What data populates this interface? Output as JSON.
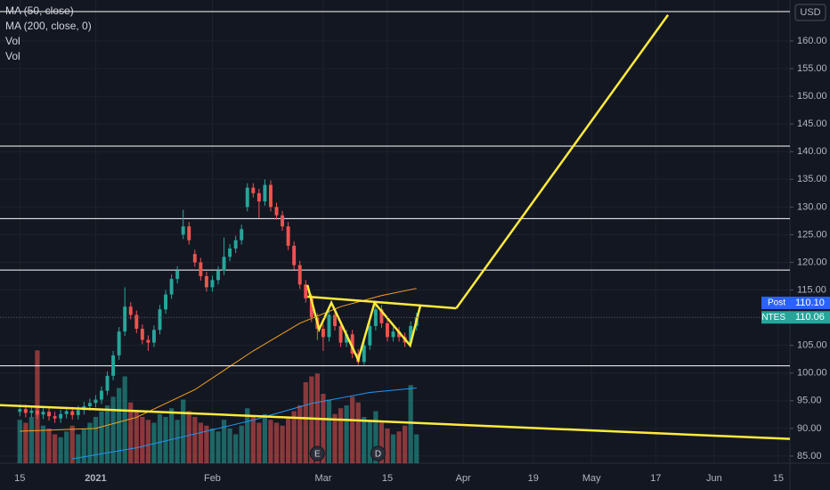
{
  "chart_data": {
    "type": "candlestick",
    "currency": "USD",
    "ylim": [
      83.7,
      167.4
    ],
    "yticks": [
      {
        "value": 85,
        "label": "85.00"
      },
      {
        "value": 90,
        "label": "90.00"
      },
      {
        "value": 95,
        "label": "95.00"
      },
      {
        "value": 100,
        "label": "100.00"
      },
      {
        "value": 105,
        "label": "105.00"
      },
      {
        "value": 110,
        "label": "110.00"
      },
      {
        "value": 115,
        "label": "115.00"
      },
      {
        "value": 120,
        "label": "120.00"
      },
      {
        "value": 125,
        "label": "125.00"
      },
      {
        "value": 130,
        "label": "130.00"
      },
      {
        "value": 135,
        "label": "135.00"
      },
      {
        "value": 140,
        "label": "140.00"
      },
      {
        "value": 145,
        "label": "145.00"
      },
      {
        "value": 150,
        "label": "150.00"
      },
      {
        "value": 155,
        "label": "155.00"
      },
      {
        "value": 160,
        "label": "160.00"
      }
    ],
    "xlim": [
      -3.4,
      132
    ],
    "xticks": [
      {
        "value": 0,
        "label": "15"
      },
      {
        "value": 13,
        "label": "2021"
      },
      {
        "value": 33,
        "label": "Feb"
      },
      {
        "value": 52,
        "label": "Mar"
      },
      {
        "value": 63,
        "label": "15"
      },
      {
        "value": 76,
        "label": "Apr"
      },
      {
        "value": 88,
        "label": "19"
      },
      {
        "value": 98,
        "label": "May"
      },
      {
        "value": 109,
        "label": "17"
      },
      {
        "value": 119,
        "label": "Jun"
      },
      {
        "value": 130,
        "label": "15"
      }
    ],
    "up_color": "#26a69a",
    "down_color": "#ef5350",
    "open": [
      93.0,
      93.5,
      92.8,
      93.2,
      92.5,
      93.0,
      92.2,
      91.8,
      92.6,
      93.1,
      92.4,
      93.3,
      94.0,
      94.6,
      95.2,
      96.8,
      99.5,
      103.2,
      107.5,
      112.0,
      110.5,
      108.0,
      106.0,
      105.5,
      107.8,
      111.5,
      114.2,
      117.0,
      125.0,
      126.5,
      121.5,
      120.0,
      117.5,
      115.5,
      116.8,
      118.5,
      121.0,
      122.5,
      124.0,
      130.0,
      133.5,
      132.5,
      131.0,
      134.0,
      130.0,
      128.5,
      126.5,
      123.0,
      119.5,
      116.0,
      113.5,
      110.0,
      108.0,
      106.5,
      110.5,
      108.5,
      105.5,
      107.0,
      103.5,
      102.0,
      105.0,
      108.5,
      111.5,
      109.0,
      106.5,
      107.5,
      106.5,
      105.5,
      108.5
    ],
    "high": [
      94.3,
      94.3,
      94.0,
      94.0,
      93.8,
      93.8,
      93.0,
      93.4,
      93.9,
      93.9,
      94.1,
      94.8,
      95.4,
      96.0,
      97.6,
      100.3,
      104.0,
      108.3,
      115.5,
      112.8,
      111.3,
      108.8,
      106.8,
      108.6,
      112.3,
      115.0,
      117.8,
      119.3,
      129.5,
      127.3,
      122.3,
      120.8,
      118.3,
      117.6,
      119.3,
      124.5,
      123.3,
      124.8,
      126.8,
      134.3,
      134.3,
      133.3,
      135.0,
      134.8,
      130.8,
      129.3,
      127.3,
      123.8,
      120.3,
      116.8,
      114.3,
      110.8,
      108.8,
      111.3,
      111.3,
      109.3,
      107.8,
      107.8,
      104.3,
      105.8,
      109.3,
      112.3,
      112.3,
      109.8,
      108.3,
      108.3,
      107.3,
      109.3,
      110.9
    ],
    "low": [
      92.2,
      92.0,
      92.0,
      91.7,
      91.7,
      91.4,
      91.0,
      91.0,
      91.8,
      91.6,
      91.6,
      92.5,
      93.2,
      93.8,
      94.4,
      96.0,
      98.7,
      102.4,
      106.7,
      109.7,
      107.2,
      105.2,
      104.0,
      104.7,
      107.0,
      110.7,
      113.4,
      116.2,
      124.2,
      123.2,
      119.2,
      116.7,
      114.7,
      114.7,
      116.0,
      117.7,
      120.2,
      121.7,
      123.2,
      129.2,
      131.7,
      128.0,
      130.2,
      129.2,
      127.7,
      125.7,
      122.2,
      118.7,
      115.2,
      112.7,
      109.2,
      106.0,
      104.0,
      105.7,
      107.7,
      104.7,
      104.7,
      102.7,
      101.5,
      101.5,
      104.2,
      107.7,
      108.2,
      105.7,
      105.7,
      105.7,
      104.7,
      104.7,
      107.7
    ],
    "close": [
      93.5,
      92.8,
      93.2,
      92.5,
      93.0,
      92.2,
      91.8,
      92.6,
      93.1,
      92.4,
      93.3,
      94.0,
      94.6,
      95.2,
      96.8,
      99.5,
      103.2,
      107.5,
      112.0,
      110.5,
      108.0,
      106.0,
      105.5,
      107.8,
      111.5,
      114.2,
      117.0,
      118.5,
      126.5,
      124.0,
      120.0,
      117.5,
      115.5,
      116.8,
      118.5,
      121.0,
      122.5,
      124.0,
      126.0,
      133.5,
      132.5,
      131.0,
      134.0,
      130.0,
      128.5,
      126.5,
      123.0,
      119.5,
      116.0,
      113.5,
      110.0,
      108.0,
      106.5,
      110.5,
      108.5,
      105.5,
      107.0,
      103.5,
      102.0,
      105.0,
      108.5,
      111.5,
      109.0,
      106.5,
      107.5,
      106.5,
      105.5,
      108.5,
      110.06
    ],
    "volume": [
      1.5,
      1.4,
      1.6,
      3.9,
      1.3,
      1.2,
      1.0,
      0.9,
      1.1,
      1.3,
      1.0,
      1.2,
      1.4,
      1.6,
      1.8,
      2.0,
      2.3,
      2.6,
      3.0,
      2.1,
      1.8,
      1.6,
      1.5,
      1.4,
      1.7,
      1.6,
      1.9,
      1.5,
      2.2,
      1.8,
      1.6,
      1.4,
      1.3,
      1.2,
      1.1,
      1.5,
      1.2,
      1.0,
      1.3,
      1.9,
      1.6,
      1.4,
      1.7,
      1.5,
      1.4,
      1.3,
      1.6,
      1.8,
      2.0,
      2.8,
      3.0,
      3.1,
      2.4,
      2.2,
      1.7,
      1.9,
      2.0,
      2.3,
      2.1,
      1.6,
      1.5,
      1.8,
      1.4,
      1.2,
      1.0,
      1.1,
      1.3,
      2.7,
      1.0
    ],
    "vlim": [
      0,
      4
    ],
    "series": [
      {
        "name": "MA (50, close)",
        "color": "#f7a21b",
        "x": [
          0,
          13,
          20,
          30,
          40,
          48,
          55,
          62,
          68
        ],
        "values": [
          89.5,
          90.0,
          92.0,
          97.0,
          104.0,
          109.0,
          112.0,
          114.0,
          115.3
        ]
      },
      {
        "name": "MA (200, close, 0)",
        "color": "#2196f3",
        "x": [
          9,
          20,
          30,
          40,
          50,
          60,
          68
        ],
        "values": [
          84.5,
          86.5,
          89.0,
          91.5,
          94.5,
          96.5,
          97.3
        ]
      }
    ],
    "volume_legend": [
      "Vol",
      "Vol"
    ],
    "levels": [
      165.3,
      141.0,
      127.9,
      118.6,
      101.3
    ],
    "level_color": "#ffffff",
    "drawing_color": "#ffeb3b",
    "drawings": [
      {
        "x": [
          -3.4,
          132
        ],
        "y": [
          94.2,
          88.1
        ]
      },
      {
        "x": [
          49.3,
          74.8
        ],
        "y": [
          113.8,
          111.7
        ]
      },
      {
        "x": [
          74.8,
          111.1
        ],
        "y": [
          111.7,
          164.7
        ]
      },
      {
        "x": [
          49.3,
          51.3,
          53.4,
          58.0,
          60.8,
          66.9,
          68.7
        ],
        "y": [
          115.9,
          107.9,
          112.7,
          102.4,
          112.7,
          105.0,
          112.4
        ]
      }
    ],
    "events": [
      {
        "label": "E",
        "x": 51
      },
      {
        "label": "D",
        "x": 61.4
      }
    ],
    "price_tags": [
      {
        "label": "Post",
        "value": 110.1,
        "value_label": "110.10",
        "color": "#2962ff"
      },
      {
        "label": "NTES",
        "value": 110.06,
        "value_label": "110.06",
        "color": "#26a69a"
      }
    ]
  }
}
